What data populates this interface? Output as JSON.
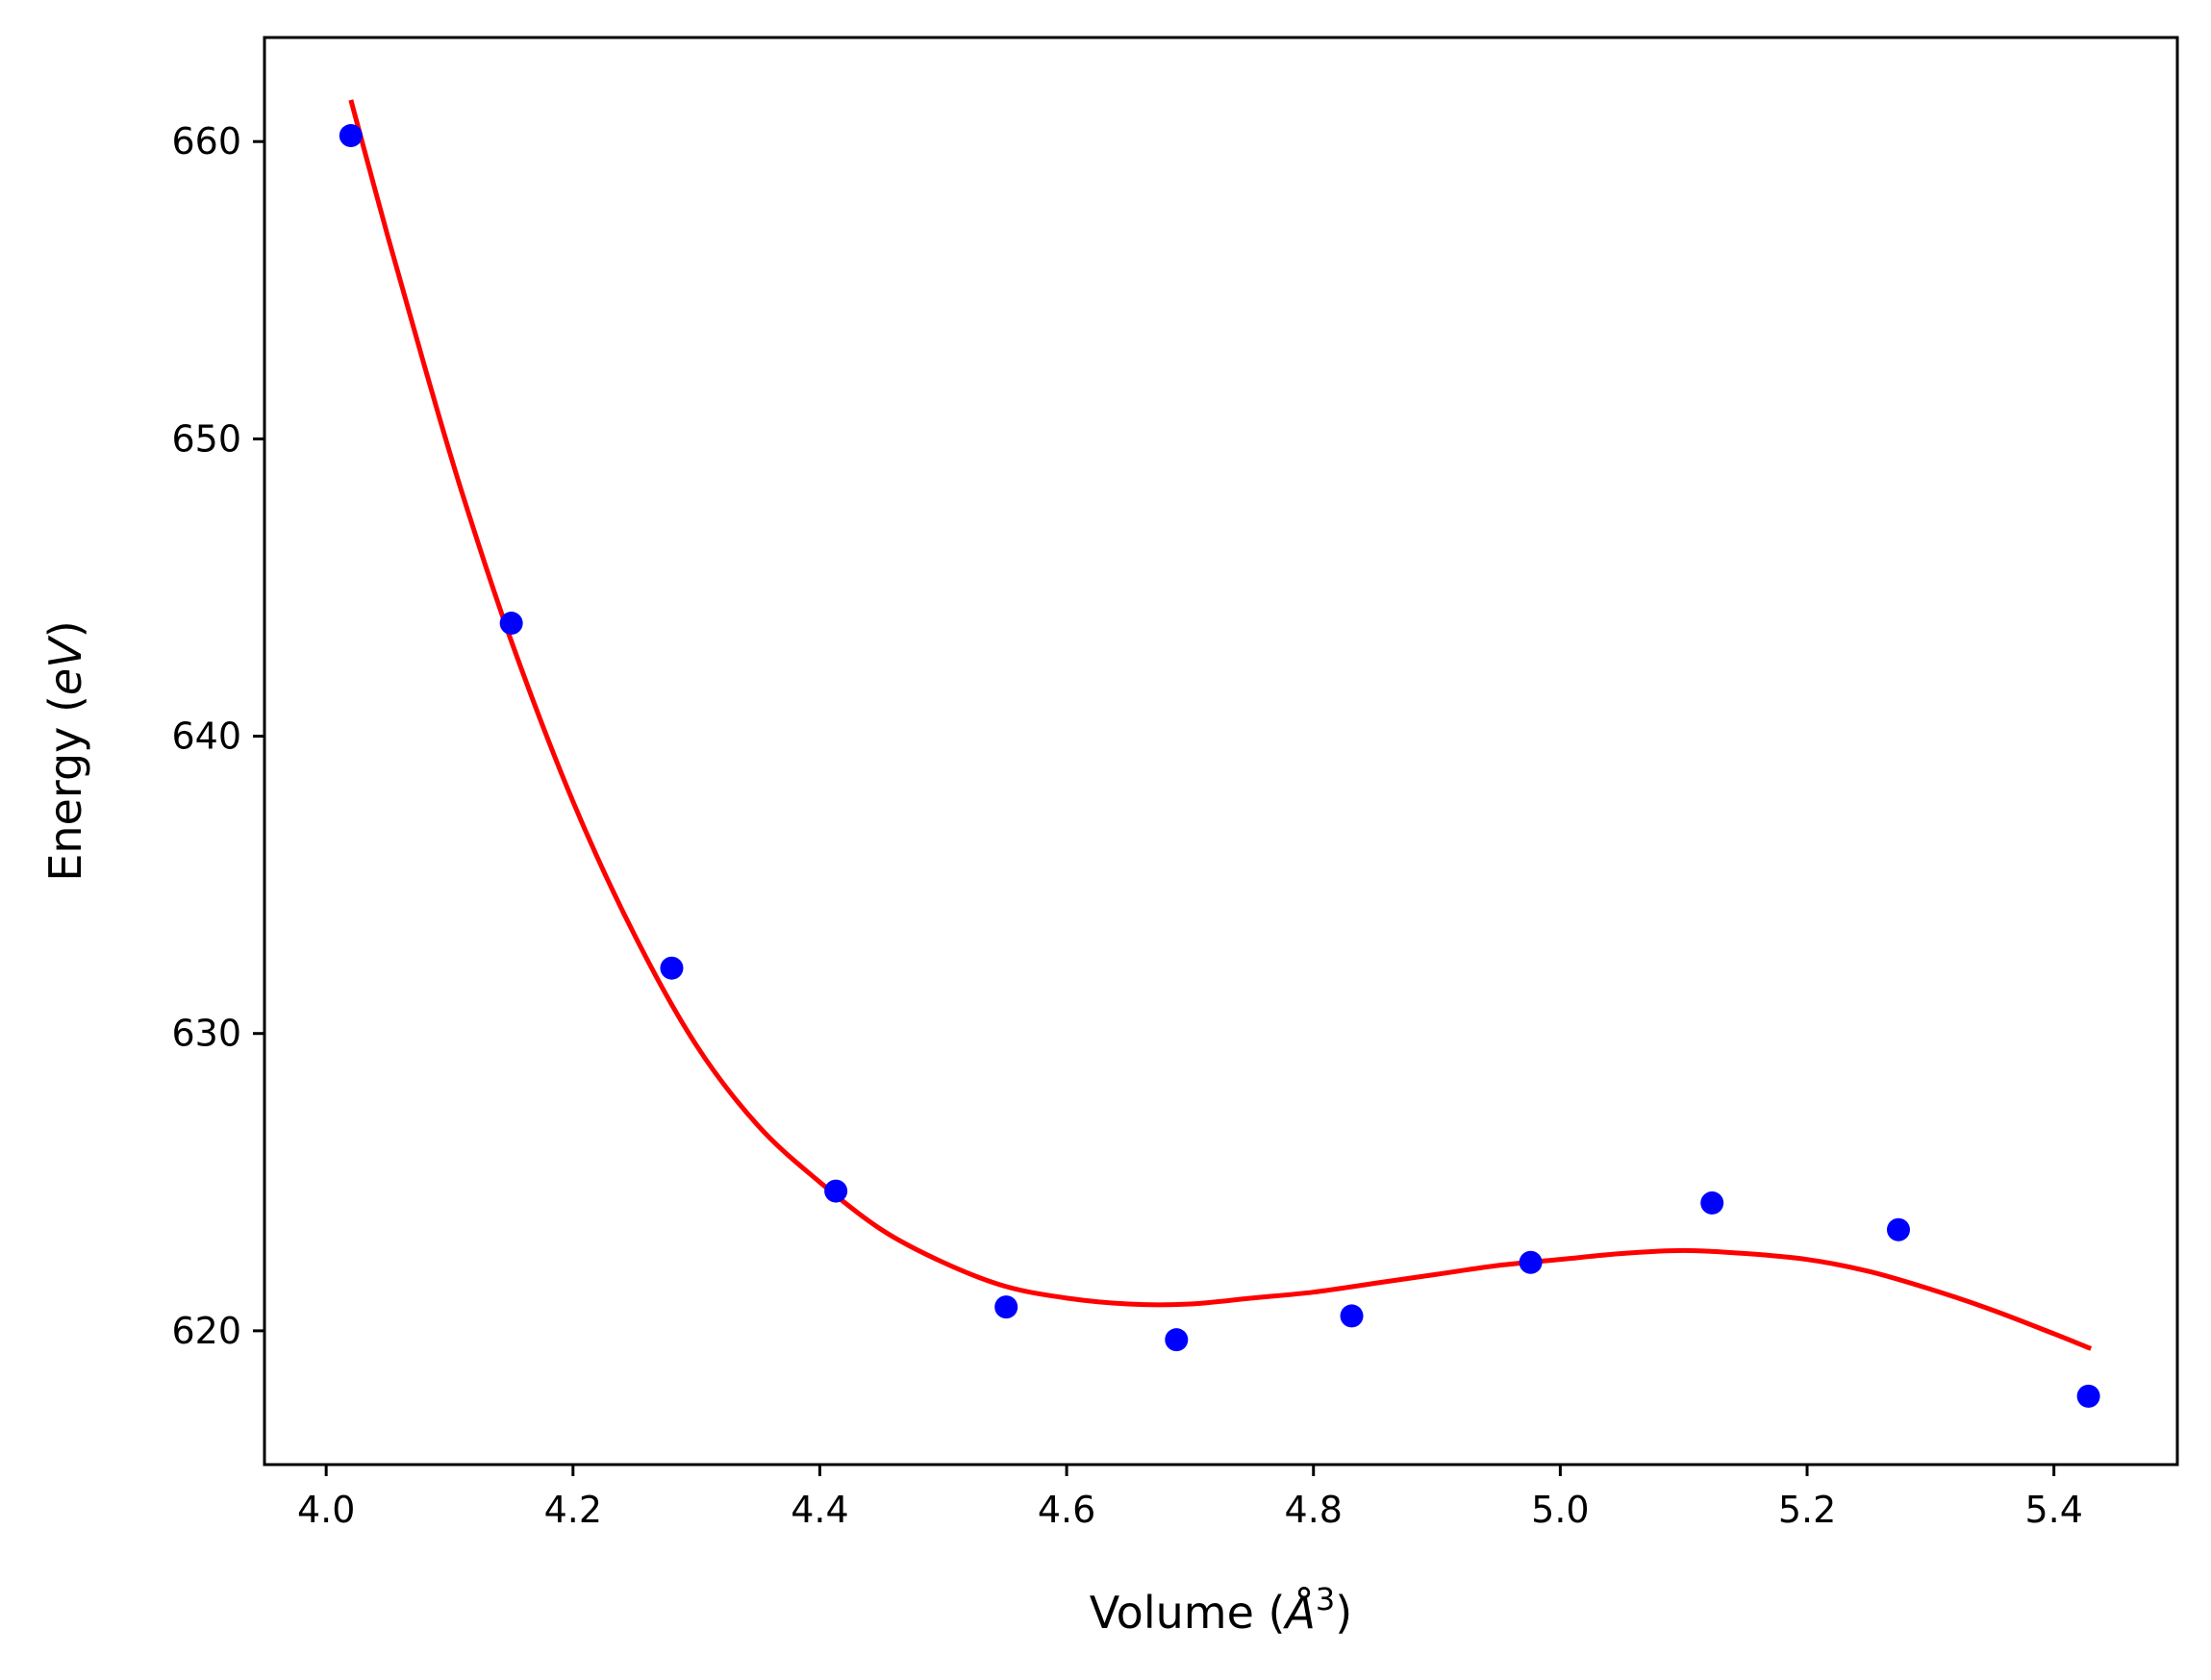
{
  "chart_data": {
    "type": "scatter",
    "xlabel": {
      "prefix": "Volume (",
      "var": "Å",
      "sup": "3",
      "suffix": ")"
    },
    "ylabel": {
      "prefix": "Energy (",
      "var": "eV",
      "suffix": ")"
    },
    "xlim": [
      3.95,
      5.5
    ],
    "ylim": [
      615.5,
      663.5
    ],
    "xticks": [
      "4.0",
      "4.2",
      "4.4",
      "4.6",
      "4.8",
      "5.0",
      "5.2",
      "5.4"
    ],
    "yticks": [
      "620",
      "630",
      "640",
      "650",
      "660"
    ],
    "grid": false,
    "series": [
      {
        "kind": "points",
        "color": "#0000ff",
        "points": [
          {
            "x": 4.02,
            "y": 660.2
          },
          {
            "x": 4.15,
            "y": 643.8
          },
          {
            "x": 4.28,
            "y": 632.2
          },
          {
            "x": 4.413,
            "y": 624.7
          },
          {
            "x": 4.551,
            "y": 620.8
          },
          {
            "x": 4.689,
            "y": 619.7
          },
          {
            "x": 4.831,
            "y": 620.5
          },
          {
            "x": 4.976,
            "y": 622.3
          },
          {
            "x": 5.123,
            "y": 624.3
          },
          {
            "x": 5.274,
            "y": 623.4
          },
          {
            "x": 5.428,
            "y": 617.8
          }
        ]
      },
      {
        "kind": "curve",
        "color": "#ff0000",
        "points": [
          {
            "x": 4.02,
            "y": 661.4
          },
          {
            "x": 4.05,
            "y": 656.8
          },
          {
            "x": 4.08,
            "y": 652.4
          },
          {
            "x": 4.11,
            "y": 648.2
          },
          {
            "x": 4.15,
            "y": 643.2
          },
          {
            "x": 4.2,
            "y": 637.8
          },
          {
            "x": 4.25,
            "y": 633.3
          },
          {
            "x": 4.3,
            "y": 629.6
          },
          {
            "x": 4.35,
            "y": 626.9
          },
          {
            "x": 4.4,
            "y": 625.0
          },
          {
            "x": 4.45,
            "y": 623.4
          },
          {
            "x": 4.5,
            "y": 622.3
          },
          {
            "x": 4.55,
            "y": 621.5
          },
          {
            "x": 4.6,
            "y": 621.1
          },
          {
            "x": 4.65,
            "y": 620.9
          },
          {
            "x": 4.7,
            "y": 620.9
          },
          {
            "x": 4.75,
            "y": 621.1
          },
          {
            "x": 4.8,
            "y": 621.3
          },
          {
            "x": 4.85,
            "y": 621.6
          },
          {
            "x": 4.9,
            "y": 621.9
          },
          {
            "x": 4.95,
            "y": 622.2
          },
          {
            "x": 5.0,
            "y": 622.4
          },
          {
            "x": 5.05,
            "y": 622.6
          },
          {
            "x": 5.1,
            "y": 622.7
          },
          {
            "x": 5.15,
            "y": 622.6
          },
          {
            "x": 5.2,
            "y": 622.4
          },
          {
            "x": 5.25,
            "y": 622.0
          },
          {
            "x": 5.3,
            "y": 621.4
          },
          {
            "x": 5.35,
            "y": 620.7
          },
          {
            "x": 5.4,
            "y": 619.9
          },
          {
            "x": 5.43,
            "y": 619.4
          }
        ]
      }
    ]
  }
}
